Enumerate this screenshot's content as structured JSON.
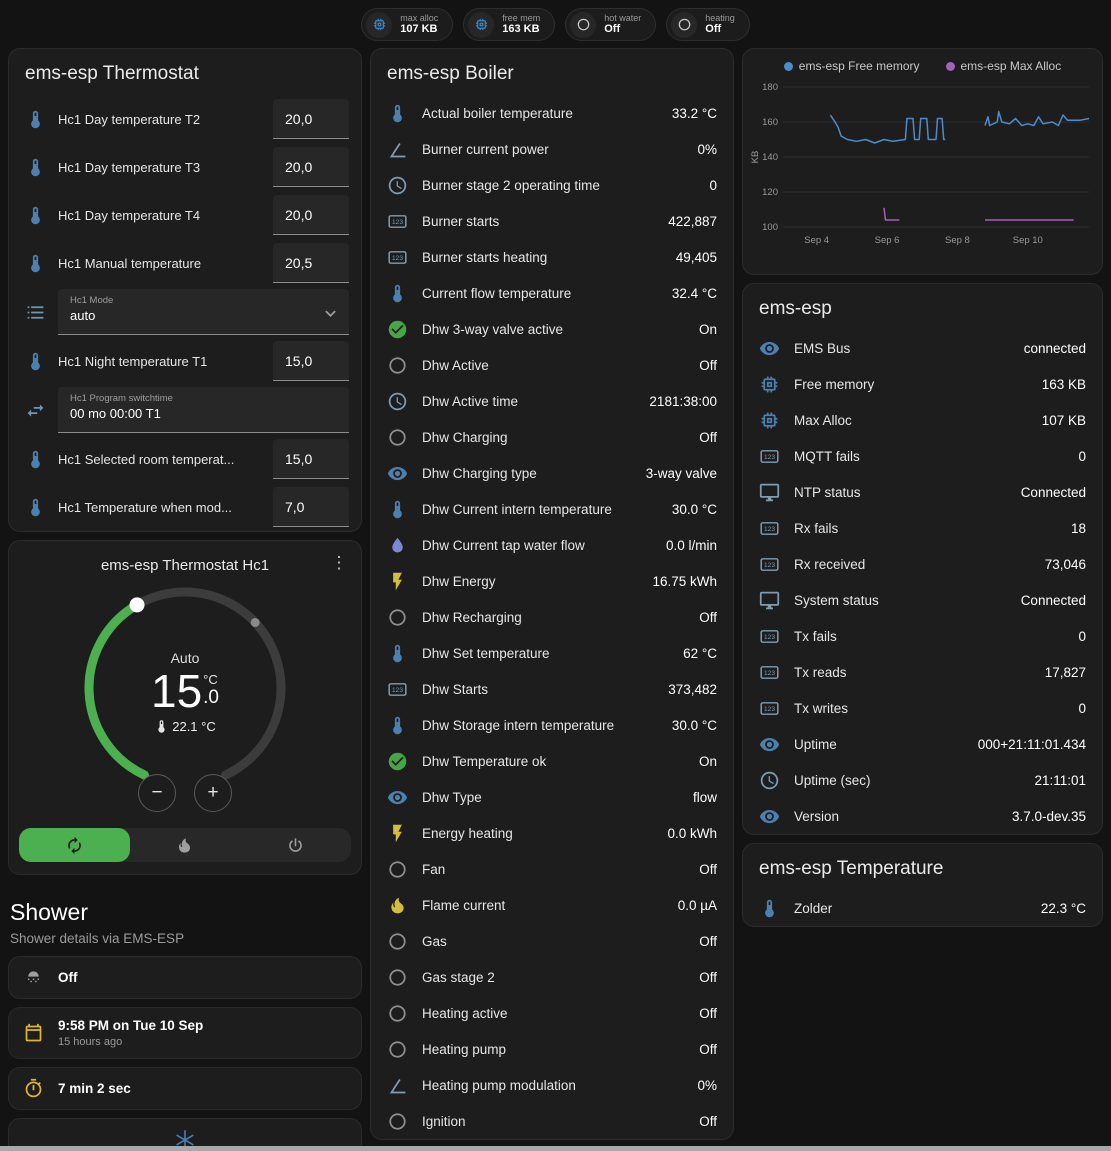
{
  "top_badges": [
    {
      "label": "max alloc",
      "value": "107 KB",
      "icon": "memory",
      "icon_color": "#3d85c6"
    },
    {
      "label": "free mem",
      "value": "163 KB",
      "icon": "memory",
      "icon_color": "#3d85c6"
    },
    {
      "label": "hot water",
      "value": "Off",
      "icon": "circle-outline",
      "icon_color": "#c8c8c8"
    },
    {
      "label": "heating",
      "value": "Off",
      "icon": "circle-outline",
      "icon_color": "#c8c8c8"
    }
  ],
  "thermostat_card": {
    "title": "ems-esp Thermostat",
    "rows": [
      {
        "type": "number",
        "icon": "thermometer",
        "icon_color": "#4c80b0",
        "label": "Hc1 Day temperature T2",
        "value": "20,0"
      },
      {
        "type": "number",
        "icon": "thermometer",
        "icon_color": "#4c80b0",
        "label": "Hc1 Day temperature T3",
        "value": "20,0"
      },
      {
        "type": "number",
        "icon": "thermometer",
        "icon_color": "#4c80b0",
        "label": "Hc1 Day temperature T4",
        "value": "20,0"
      },
      {
        "type": "number",
        "icon": "thermometer",
        "icon_color": "#4c80b0",
        "label": "Hc1 Manual temperature",
        "value": "20,5"
      },
      {
        "type": "select",
        "icon": "format-list",
        "icon_color": "#6d95b5",
        "label": "Hc1 Mode",
        "value": "auto"
      },
      {
        "type": "number",
        "icon": "thermometer",
        "icon_color": "#4c80b0",
        "label": "Hc1 Night temperature T1",
        "value": "15,0"
      },
      {
        "type": "text",
        "icon": "swap-horizontal",
        "icon_color": "#6d95b5",
        "label": "Hc1 Program switchtime",
        "value": "00 mo 00:00 T1"
      },
      {
        "type": "number",
        "icon": "thermometer",
        "icon_color": "#4c80b0",
        "label": "Hc1 Selected room temperat...",
        "value": "15,0"
      },
      {
        "type": "number",
        "icon": "thermometer",
        "icon_color": "#4c80b0",
        "label": "Hc1 Temperature when mod...",
        "value": "7,0"
      }
    ]
  },
  "hc1_card": {
    "title": "ems-esp Thermostat Hc1",
    "mode_label": "Auto",
    "temp_main": "15",
    "temp_dec": ".0",
    "temp_unit": "°C",
    "current_temp": "22.1 °C",
    "decrease_label": "−",
    "increase_label": "+",
    "accent_green": "#4caf50",
    "modes": [
      {
        "name": "auto",
        "icon": "autorenew",
        "active": true
      },
      {
        "name": "heat",
        "icon": "fire",
        "active": false
      },
      {
        "name": "off",
        "icon": "power",
        "active": false
      }
    ]
  },
  "shower": {
    "title": "Shower",
    "subtitle": "Shower details via EMS-ESP",
    "cards": [
      {
        "icon": "shower-head",
        "icon_color": "#9e9e9e",
        "primary": "Off",
        "secondary": ""
      },
      {
        "icon": "calendar",
        "icon_color": "#ddb52f",
        "primary": "9:58 PM on Tue 10 Sep",
        "secondary": "15 hours ago"
      },
      {
        "icon": "timer",
        "icon_color": "#ddb52f",
        "primary": "7 min 2 sec",
        "secondary": ""
      }
    ],
    "partial_icon": "snowflake",
    "partial_icon_color": "#4c80b0"
  },
  "boiler_card": {
    "title": "ems-esp Boiler",
    "rows": [
      {
        "icon": "thermometer",
        "icon_color": "#4c80b0",
        "label": "Actual boiler temperature",
        "value": "33.2 °C"
      },
      {
        "icon": "angle",
        "icon_color": "#7f9db1",
        "label": "Burner current power",
        "value": "0%"
      },
      {
        "icon": "clock",
        "icon_color": "#7f9db1",
        "label": "Burner stage 2 operating time",
        "value": "0"
      },
      {
        "icon": "counter",
        "icon_color": "#7f9db1",
        "label": "Burner starts",
        "value": "422,887"
      },
      {
        "icon": "counter",
        "icon_color": "#7f9db1",
        "label": "Burner starts heating",
        "value": "49,405"
      },
      {
        "icon": "thermometer",
        "icon_color": "#4c80b0",
        "label": "Current flow temperature",
        "value": "32.4 °C"
      },
      {
        "icon": "check-circle",
        "icon_color": "#46a646",
        "label": "Dhw 3-way valve active",
        "value": "On"
      },
      {
        "icon": "circle-outline",
        "icon_color": "#8f8f8f",
        "label": "Dhw Active",
        "value": "Off"
      },
      {
        "icon": "clock",
        "icon_color": "#7f9db1",
        "label": "Dhw Active time",
        "value": "2181:38:00"
      },
      {
        "icon": "circle-outline",
        "icon_color": "#8f8f8f",
        "label": "Dhw Charging",
        "value": "Off"
      },
      {
        "icon": "eye",
        "icon_color": "#4c80b0",
        "label": "Dhw Charging type",
        "value": "3-way valve"
      },
      {
        "icon": "thermometer",
        "icon_color": "#4c80b0",
        "label": "Dhw Current intern temperature",
        "value": "30.0 °C"
      },
      {
        "icon": "water-pump",
        "icon_color": "#7b89d4",
        "label": "Dhw Current tap water flow",
        "value": "0.0 l/min"
      },
      {
        "icon": "flash",
        "icon_color": "#d4bd3e",
        "label": "Dhw Energy",
        "value": "16.75 kWh"
      },
      {
        "icon": "circle-outline",
        "icon_color": "#8f8f8f",
        "label": "Dhw Recharging",
        "value": "Off"
      },
      {
        "icon": "thermometer",
        "icon_color": "#4c80b0",
        "label": "Dhw Set temperature",
        "value": "62 °C"
      },
      {
        "icon": "counter",
        "icon_color": "#7f9db1",
        "label": "Dhw Starts",
        "value": "373,482"
      },
      {
        "icon": "thermometer",
        "icon_color": "#4c80b0",
        "label": "Dhw Storage intern temperature",
        "value": "30.0 °C"
      },
      {
        "icon": "check-circle",
        "icon_color": "#46a646",
        "label": "Dhw Temperature ok",
        "value": "On"
      },
      {
        "icon": "eye",
        "icon_color": "#4c80b0",
        "label": "Dhw Type",
        "value": "flow"
      },
      {
        "icon": "flash",
        "icon_color": "#d4bd3e",
        "label": "Energy heating",
        "value": "0.0 kWh"
      },
      {
        "icon": "circle-outline",
        "icon_color": "#8f8f8f",
        "label": "Fan",
        "value": "Off"
      },
      {
        "icon": "fire",
        "icon_color": "#d4bd3e",
        "label": "Flame current",
        "value": "0.0 µA"
      },
      {
        "icon": "circle-outline",
        "icon_color": "#8f8f8f",
        "label": "Gas",
        "value": "Off"
      },
      {
        "icon": "circle-outline",
        "icon_color": "#8f8f8f",
        "label": "Gas stage 2",
        "value": "Off"
      },
      {
        "icon": "circle-outline",
        "icon_color": "#8f8f8f",
        "label": "Heating active",
        "value": "Off"
      },
      {
        "icon": "circle-outline",
        "icon_color": "#8f8f8f",
        "label": "Heating pump",
        "value": "Off"
      },
      {
        "icon": "angle",
        "icon_color": "#7f9db1",
        "label": "Heating pump modulation",
        "value": "0%"
      },
      {
        "icon": "circle-outline",
        "icon_color": "#8f8f8f",
        "label": "Ignition",
        "value": "Off"
      }
    ]
  },
  "emsesp_card": {
    "title": "ems-esp",
    "rows": [
      {
        "icon": "eye",
        "icon_color": "#4c80b0",
        "label": "EMS Bus",
        "value": "connected"
      },
      {
        "icon": "memory",
        "icon_color": "#4c80b0",
        "label": "Free memory",
        "value": "163 KB"
      },
      {
        "icon": "memory",
        "icon_color": "#4c80b0",
        "label": "Max Alloc",
        "value": "107 KB"
      },
      {
        "icon": "counter",
        "icon_color": "#7f9db1",
        "label": "MQTT fails",
        "value": "0"
      },
      {
        "icon": "monitor",
        "icon_color": "#7f9db1",
        "label": "NTP status",
        "value": "Connected"
      },
      {
        "icon": "counter",
        "icon_color": "#7f9db1",
        "label": "Rx fails",
        "value": "18"
      },
      {
        "icon": "counter",
        "icon_color": "#7f9db1",
        "label": "Rx received",
        "value": "73,046"
      },
      {
        "icon": "monitor",
        "icon_color": "#7f9db1",
        "label": "System status",
        "value": "Connected"
      },
      {
        "icon": "counter",
        "icon_color": "#7f9db1",
        "label": "Tx fails",
        "value": "0"
      },
      {
        "icon": "counter",
        "icon_color": "#7f9db1",
        "label": "Tx reads",
        "value": "17,827"
      },
      {
        "icon": "counter",
        "icon_color": "#7f9db1",
        "label": "Tx writes",
        "value": "0"
      },
      {
        "icon": "eye",
        "icon_color": "#4c80b0",
        "label": "Uptime",
        "value": "000+21:11:01.434"
      },
      {
        "icon": "clock",
        "icon_color": "#7f9db1",
        "label": "Uptime (sec)",
        "value": "21:11:01"
      },
      {
        "icon": "eye",
        "icon_color": "#4c80b0",
        "label": "Version",
        "value": "3.7.0-dev.35"
      }
    ]
  },
  "temperature_card": {
    "title": "ems-esp Temperature",
    "rows": [
      {
        "icon": "thermometer",
        "icon_color": "#4c80b0",
        "label": "Zolder",
        "value": "22.3 °C"
      }
    ]
  },
  "chart_data": {
    "type": "line",
    "title": "",
    "xlabel": "",
    "ylabel": "KB",
    "ylim": [
      100,
      180
    ],
    "yticks": [
      100,
      120,
      140,
      160,
      180
    ],
    "grid": true,
    "legend_position": "top",
    "xticks": [
      {
        "label": "Sep 4",
        "pos": 0.11
      },
      {
        "label": "Sep 6",
        "pos": 0.34
      },
      {
        "label": "Sep 8",
        "pos": 0.57
      },
      {
        "label": "Sep 10",
        "pos": 0.8
      }
    ],
    "series": [
      {
        "name": "ems-esp Free memory",
        "color": "#4e8cc9",
        "unit": "KB",
        "segments": [
          [
            [
              0.155,
              164
            ],
            [
              0.17,
              160
            ],
            [
              0.18,
              157
            ],
            [
              0.19,
              152
            ],
            [
              0.21,
              150
            ],
            [
              0.24,
              149
            ],
            [
              0.27,
              150
            ],
            [
              0.3,
              148
            ],
            [
              0.33,
              150
            ],
            [
              0.36,
              149
            ],
            [
              0.4,
              150
            ],
            [
              0.405,
              162
            ],
            [
              0.425,
              162
            ],
            [
              0.43,
              150
            ],
            [
              0.445,
              150
            ],
            [
              0.45,
              162
            ],
            [
              0.47,
              162
            ],
            [
              0.475,
              150
            ],
            [
              0.5,
              150
            ],
            [
              0.505,
              162
            ],
            [
              0.52,
              162
            ],
            [
              0.525,
              150
            ],
            [
              0.53,
              150
            ]
          ],
          [
            [
              0.66,
              158
            ],
            [
              0.67,
              163
            ],
            [
              0.675,
              158
            ],
            [
              0.7,
              160
            ],
            [
              0.705,
              166
            ],
            [
              0.715,
              160
            ],
            [
              0.74,
              159
            ],
            [
              0.76,
              162
            ],
            [
              0.78,
              158
            ],
            [
              0.8,
              159
            ],
            [
              0.82,
              158
            ],
            [
              0.835,
              163
            ],
            [
              0.85,
              159
            ],
            [
              0.88,
              160
            ],
            [
              0.9,
              158
            ],
            [
              0.915,
              164
            ],
            [
              0.93,
              161
            ],
            [
              0.97,
              161
            ],
            [
              1.0,
              162
            ]
          ]
        ]
      },
      {
        "name": "ems-esp Max Alloc",
        "color": "#a361b8",
        "unit": "KB",
        "segments": [
          [
            [
              0.33,
              111
            ],
            [
              0.335,
              104
            ],
            [
              0.38,
              104
            ]
          ],
          [
            [
              0.66,
              104
            ],
            [
              0.95,
              104
            ]
          ]
        ]
      }
    ]
  }
}
